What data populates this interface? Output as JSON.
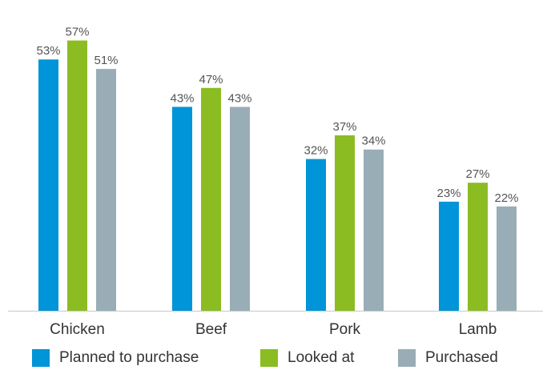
{
  "chart_data": {
    "type": "bar",
    "categories": [
      "Chicken",
      "Beef",
      "Pork",
      "Lamb"
    ],
    "series": [
      {
        "name": "Planned to purchase",
        "values": [
          53,
          43,
          32,
          23
        ],
        "labels": [
          "53%",
          "43%",
          "32%",
          "23%"
        ],
        "color": "#0094d8"
      },
      {
        "name": "Looked at",
        "values": [
          57,
          47,
          37,
          27
        ],
        "labels": [
          "57%",
          "47%",
          "37%",
          "27%"
        ],
        "color": "#8bbc22"
      },
      {
        "name": "Purchased",
        "values": [
          51,
          43,
          34,
          22
        ],
        "labels": [
          "51%",
          "43%",
          "34%",
          "22%"
        ],
        "color": "#99adb6"
      }
    ],
    "ylim": [
      0,
      60
    ],
    "grid": false,
    "legend_position": "bottom",
    "title": "",
    "xlabel": "",
    "ylabel": ""
  }
}
